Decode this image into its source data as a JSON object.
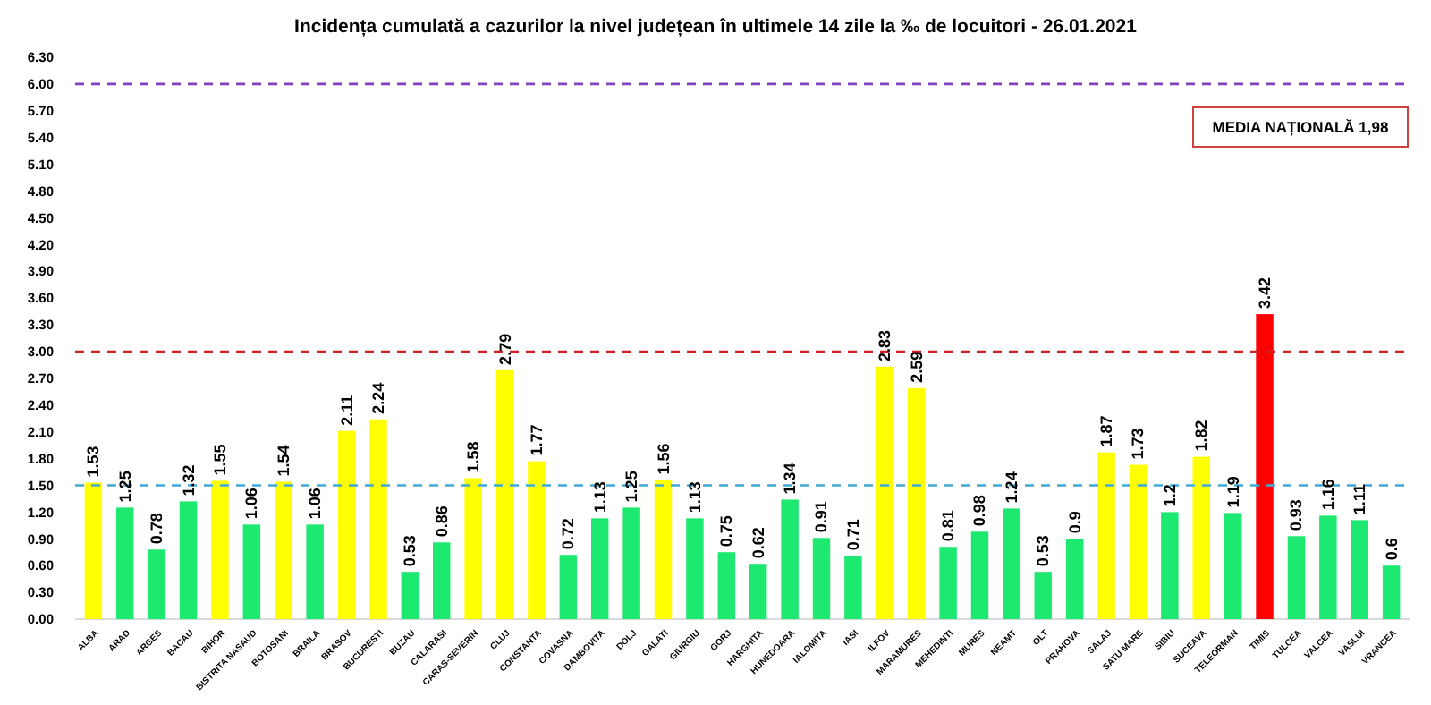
{
  "chart_data": {
    "type": "bar",
    "title": "Incidența cumulată a cazurilor la nivel județean în ultimele 14 zile la ‰ de locuitori - 26.01.2021",
    "categories": [
      "ALBA",
      "ARAD",
      "ARGES",
      "BACAU",
      "BIHOR",
      "BISTRITA NASAUD",
      "BOTOSANI",
      "BRAILA",
      "BRASOV",
      "BUCURESTI",
      "BUZAU",
      "CALARASI",
      "CARAS-SEVERIN",
      "CLUJ",
      "CONSTANTA",
      "COVASNA",
      "DAMBOVITA",
      "DOLJ",
      "GALATI",
      "GIURGIU",
      "GORJ",
      "HARGHITA",
      "HUNEDOARA",
      "IALOMITA",
      "IASI",
      "ILFOV",
      "MARAMURES",
      "MEHEDINTI",
      "MURES",
      "NEAMT",
      "OLT",
      "PRAHOVA",
      "SALAJ",
      "SATU MARE",
      "SIBIU",
      "SUCEAVA",
      "TELEORMAN",
      "TIMIS",
      "TULCEA",
      "VALCEA",
      "VASLUI",
      "VRANCEA"
    ],
    "values": [
      1.53,
      1.25,
      0.78,
      1.32,
      1.55,
      1.06,
      1.54,
      1.06,
      2.11,
      2.24,
      0.53,
      0.86,
      1.58,
      2.79,
      1.77,
      0.72,
      1.13,
      1.25,
      1.56,
      1.13,
      0.75,
      0.62,
      1.34,
      0.91,
      0.71,
      2.83,
      2.59,
      0.81,
      0.98,
      1.24,
      0.53,
      0.9,
      1.87,
      1.73,
      1.2,
      1.82,
      1.19,
      3.42,
      0.93,
      1.16,
      1.11,
      0.6
    ],
    "colors": [
      "#ffff00",
      "#1de870",
      "#1de870",
      "#1de870",
      "#ffff00",
      "#1de870",
      "#ffff00",
      "#1de870",
      "#ffff00",
      "#ffff00",
      "#1de870",
      "#1de870",
      "#ffff00",
      "#ffff00",
      "#ffff00",
      "#1de870",
      "#1de870",
      "#1de870",
      "#ffff00",
      "#1de870",
      "#1de870",
      "#1de870",
      "#1de870",
      "#1de870",
      "#1de870",
      "#ffff00",
      "#ffff00",
      "#1de870",
      "#1de870",
      "#1de870",
      "#1de870",
      "#1de870",
      "#ffff00",
      "#ffff00",
      "#1de870",
      "#ffff00",
      "#1de870",
      "#ff0000",
      "#1de870",
      "#1de870",
      "#1de870",
      "#1de870"
    ],
    "ylim": [
      0,
      6.3
    ],
    "yticks": [
      {
        "value": 0,
        "label": "0.00"
      },
      {
        "value": 0.3,
        "label": "0.30"
      },
      {
        "value": 0.6,
        "label": "0.60"
      },
      {
        "value": 0.9,
        "label": "0.90"
      },
      {
        "value": 1.2,
        "label": "1.20"
      },
      {
        "value": 1.5,
        "label": "1.50"
      },
      {
        "value": 1.8,
        "label": "1.80"
      },
      {
        "value": 2.1,
        "label": "2.10"
      },
      {
        "value": 2.4,
        "label": "2.40"
      },
      {
        "value": 2.7,
        "label": "2.70"
      },
      {
        "value": 3,
        "label": "3.00"
      },
      {
        "value": 3.3,
        "label": "3.30"
      },
      {
        "value": 3.6,
        "label": "3.60"
      },
      {
        "value": 3.9,
        "label": "3.90"
      },
      {
        "value": 4.2,
        "label": "4.20"
      },
      {
        "value": 4.5,
        "label": "4.50"
      },
      {
        "value": 4.8,
        "label": "4.80"
      },
      {
        "value": 5.1,
        "label": "5.10"
      },
      {
        "value": 5.4,
        "label": "5.40"
      },
      {
        "value": 5.7,
        "label": "5.70"
      },
      {
        "value": 6,
        "label": "6.00"
      },
      {
        "value": 6.3,
        "label": "6.30"
      }
    ],
    "ref_lines": [
      {
        "axis": "y",
        "value": 1.5,
        "color": "#3fa9d8",
        "line_style": "dashed"
      },
      {
        "axis": "y",
        "value": 3,
        "color": "#d02020",
        "line_style": "dashed"
      },
      {
        "axis": "y",
        "value": 6,
        "color": "#8040c0",
        "line_style": "dashed"
      }
    ],
    "annotations": [
      "MEDIA NAȚIONALĂ  1,98"
    ],
    "data_labels": true,
    "grid": false
  }
}
